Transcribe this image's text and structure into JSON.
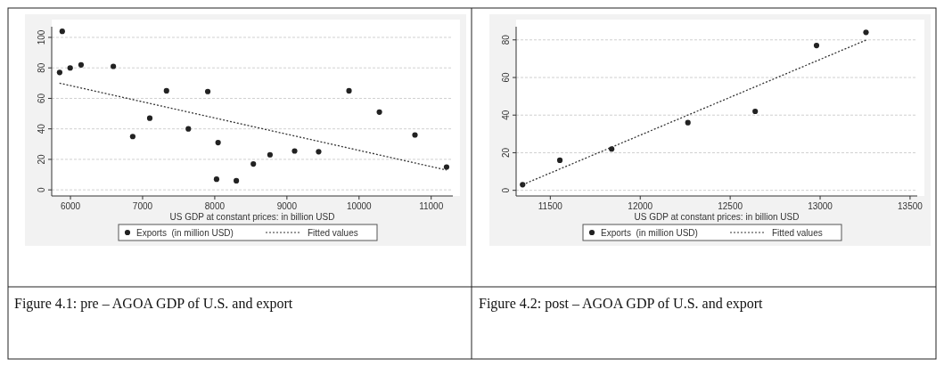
{
  "chart_data": [
    {
      "type": "scatter",
      "xlabel": "US GDP at constant prices: in billion USD",
      "xlim": [
        5740,
        11300
      ],
      "ylim": [
        -4,
        107
      ],
      "xticks": [
        6000,
        7000,
        8000,
        9000,
        10000,
        11000
      ],
      "yticks": [
        0,
        20,
        40,
        60,
        80,
        100
      ],
      "grid": "y",
      "legend": "bottom",
      "annotations": [
        "Figure 4.1: pre – AGOA GDP of U.S. and export"
      ],
      "series": [
        {
          "name": "Exports  (in million USD)",
          "marker": "circle",
          "color": "#222222",
          "x": [
            5850,
            5886,
            5996,
            6147,
            6594,
            6863,
            7099,
            7331,
            7634,
            7903,
            8046,
            8025,
            8299,
            8535,
            8766,
            9107,
            9440,
            9861,
            10282,
            10775,
            11213
          ],
          "values": [
            77,
            104,
            80,
            82,
            81,
            35,
            47,
            65,
            40,
            64.5,
            31,
            7,
            6,
            17,
            23,
            25.5,
            25,
            65,
            51,
            36,
            15
          ]
        },
        {
          "name": "Fitted values",
          "type": "line",
          "line_style": "dotted",
          "color": "#333333",
          "x": [
            5848,
            11213
          ],
          "values": [
            70,
            13
          ]
        }
      ]
    },
    {
      "type": "scatter",
      "xlabel": "US GDP at constant prices: in billion USD",
      "xlim": [
        11310,
        13540
      ],
      "ylim": [
        -3,
        87
      ],
      "xticks": [
        11500,
        12000,
        12500,
        13000,
        13500
      ],
      "yticks": [
        0,
        20,
        40,
        60,
        80
      ],
      "grid": "y",
      "legend": "bottom",
      "annotations": [
        "Figure 4.2: post – AGOA GDP of U.S. and export"
      ],
      "series": [
        {
          "name": "Exports  (in million USD)",
          "marker": "circle",
          "color": "#222222",
          "x": [
            11346,
            11553,
            11841,
            12265,
            12639,
            12980,
            13255
          ],
          "values": [
            3,
            16,
            22,
            36,
            42,
            77,
            84
          ]
        },
        {
          "name": "Fitted values",
          "type": "line",
          "line_style": "dotted",
          "color": "#333333",
          "x": [
            11346,
            13258
          ],
          "values": [
            3,
            80
          ]
        }
      ]
    }
  ]
}
